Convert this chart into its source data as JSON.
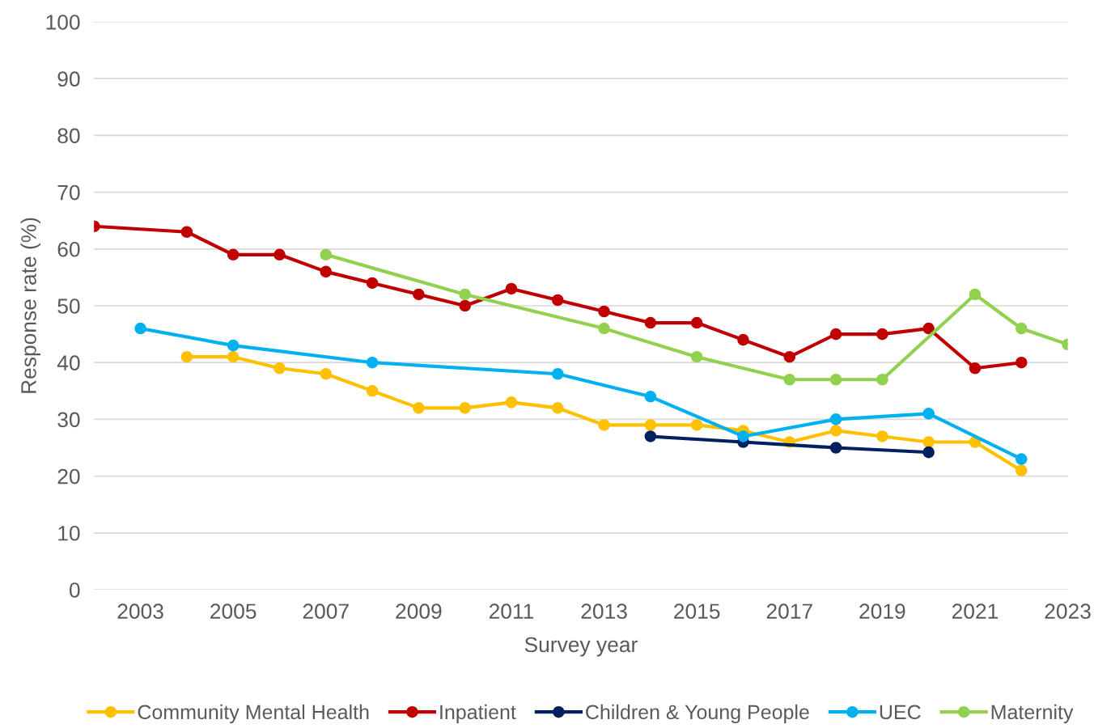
{
  "chart_data": {
    "type": "line",
    "xlabel": "Survey year",
    "ylabel": "Response rate (%)",
    "xlim": [
      2002,
      2023
    ],
    "xticks": [
      2003,
      2005,
      2007,
      2009,
      2011,
      2013,
      2015,
      2017,
      2019,
      2021,
      2023
    ],
    "ylim": [
      0,
      100
    ],
    "yticks": [
      0,
      10,
      20,
      30,
      40,
      50,
      60,
      70,
      80,
      90,
      100
    ],
    "grid": "y",
    "legend": "bottom",
    "marker": "circle",
    "line_style": "solid",
    "series": [
      {
        "name": "Community Mental Health",
        "color": "#ffc000",
        "x": [
          2004,
          2005,
          2006,
          2007,
          2008,
          2009,
          2010,
          2011,
          2012,
          2013,
          2014,
          2015,
          2016,
          2017,
          2018,
          2019,
          2020,
          2021,
          2022
        ],
        "values": [
          41,
          41,
          39,
          38,
          35,
          32,
          32,
          33,
          32,
          29,
          29,
          29,
          28,
          26,
          28,
          27,
          26,
          26,
          21
        ]
      },
      {
        "name": "Inpatient",
        "color": "#c00000",
        "x": [
          2002,
          2004,
          2005,
          2006,
          2007,
          2008,
          2009,
          2010,
          2011,
          2012,
          2013,
          2014,
          2015,
          2016,
          2017,
          2018,
          2019,
          2020,
          2021,
          2022
        ],
        "values": [
          64,
          63,
          59,
          59,
          56,
          54,
          52,
          50,
          53,
          51,
          49,
          47,
          47,
          44,
          41,
          45,
          45,
          46,
          39,
          40
        ]
      },
      {
        "name": "Children & Young People",
        "color": "#002060",
        "x": [
          2014,
          2016,
          2018,
          2020
        ],
        "values": [
          27,
          26,
          25,
          24.2
        ]
      },
      {
        "name": "UEC",
        "color": "#00b0f0",
        "x": [
          2003,
          2005,
          2008,
          2012,
          2014,
          2016,
          2018,
          2020,
          2022
        ],
        "values": [
          46,
          43,
          40,
          38,
          34,
          27,
          30,
          31,
          23
        ]
      },
      {
        "name": "Maternity",
        "color": "#92d050",
        "x": [
          2007,
          2010,
          2013,
          2015,
          2017,
          2018,
          2019,
          2021,
          2022,
          2023
        ],
        "values": [
          59,
          52,
          46,
          41,
          37,
          37,
          37,
          52,
          46,
          43.2
        ]
      }
    ]
  }
}
